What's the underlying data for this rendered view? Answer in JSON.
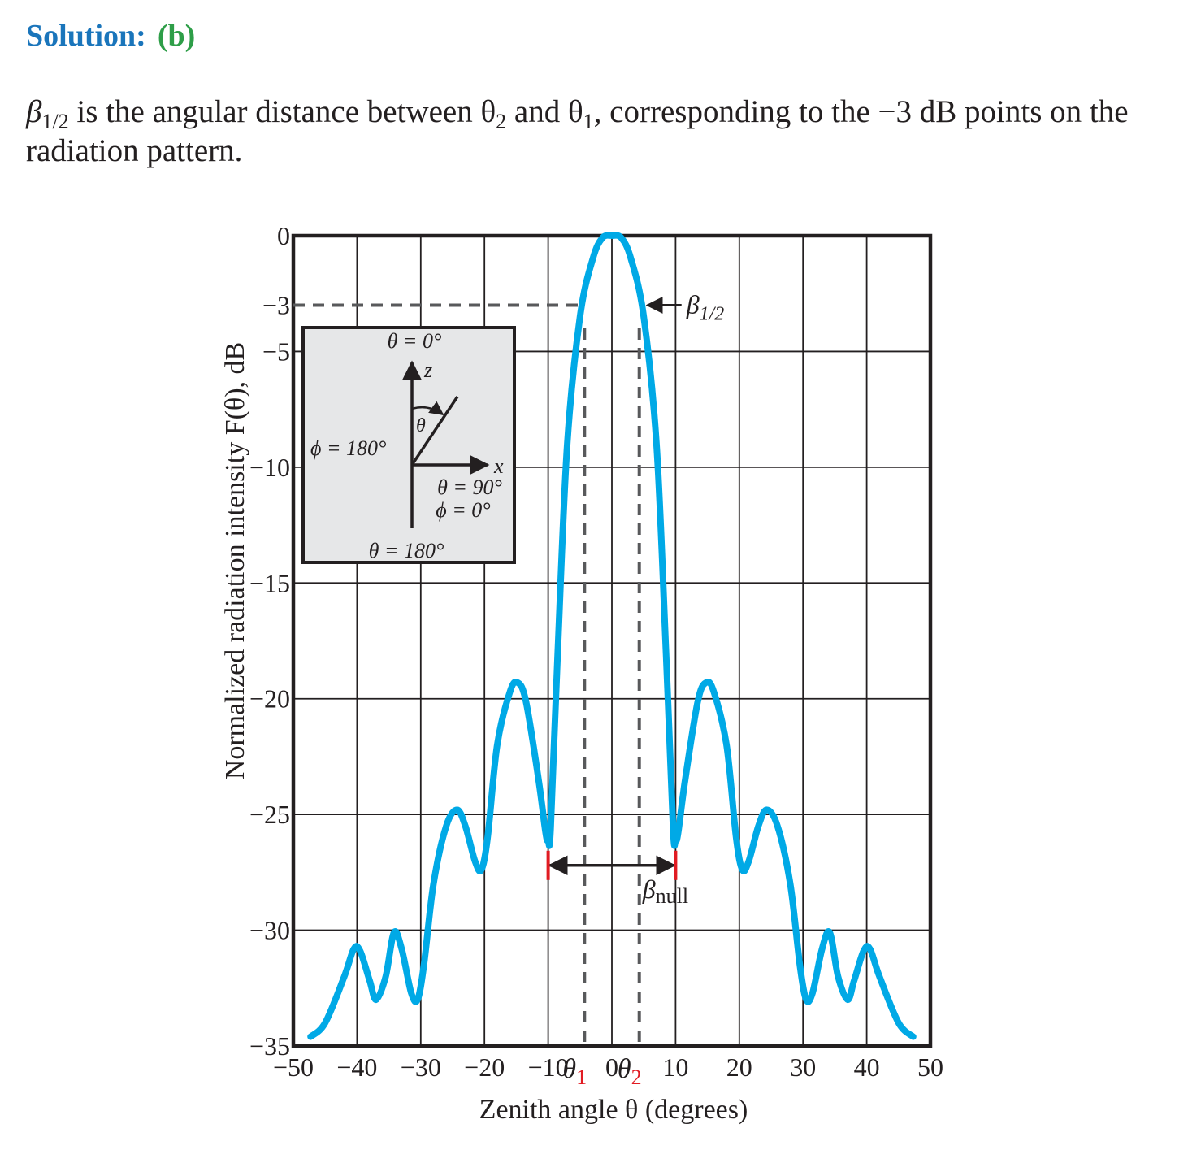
{
  "heading": {
    "label": "Solution:",
    "answer": "(b)"
  },
  "paragraph": {
    "symbol": "β",
    "symbol_sub": "1/2",
    "part1": " is the angular distance between ",
    "theta2": "θ",
    "theta2_sub": "2",
    "part2": " and ",
    "theta1": "θ",
    "theta1_sub": "1",
    "part3": ", corresponding to the −3 dB points on the radiation pattern."
  },
  "chart_data": {
    "type": "line",
    "xlabel": "Zenith angle θ (degrees)",
    "ylabel": "Normalized radiation intensity F(θ), dB",
    "xlim": [
      -50,
      50
    ],
    "ylim": [
      -35,
      0
    ],
    "xticks": [
      -50,
      -40,
      -30,
      -20,
      -10,
      0,
      10,
      20,
      30,
      40,
      50
    ],
    "xtick_labels": [
      "−50",
      "−40",
      "−30",
      "−20",
      "−10",
      "0",
      "10",
      "20",
      "30",
      "40",
      "50"
    ],
    "yticks": [
      0,
      -3,
      -5,
      -10,
      -15,
      -20,
      -25,
      -30,
      -35
    ],
    "ytick_labels": [
      "0",
      "−3",
      "−5",
      "−10",
      "−15",
      "−20",
      "−25",
      "−30",
      "−35"
    ],
    "grid": true,
    "line_color": "#00a9e6",
    "accent_color": "#e11b22",
    "series": [
      {
        "x": [
          -47.3,
          -45,
          -42,
          -40.5,
          -39.5,
          -38,
          -37,
          -35.5,
          -34.2,
          -33,
          -31.5,
          -30.5,
          -29.5,
          -28,
          -26,
          -24.3,
          -23,
          -21.5,
          -20.5,
          -19.5,
          -18,
          -16,
          -14.8,
          -13.5,
          -11.5,
          -10.4,
          -10,
          -9.6,
          -8.5,
          -7,
          -5,
          -3,
          -1.5,
          0,
          1.5,
          3,
          5,
          7,
          8.5,
          9.6,
          10,
          10.4,
          11.5,
          13.5,
          14.8,
          16,
          18,
          19.5,
          20.5,
          21.5,
          23,
          24.3,
          26,
          28,
          29.5,
          30.5,
          31.5,
          33,
          34.2,
          35.5,
          37,
          38,
          39.5,
          40.5,
          42,
          45,
          47.3
        ],
        "y": [
          -34.6,
          -34,
          -32,
          -30.8,
          -30.9,
          -32.2,
          -33,
          -32,
          -30.1,
          -30.8,
          -32.7,
          -33,
          -31.5,
          -28,
          -25.5,
          -24.8,
          -25.5,
          -27,
          -27.4,
          -26,
          -22,
          -19.7,
          -19.3,
          -20.1,
          -23.5,
          -25.8,
          -26.1,
          -25.6,
          -18,
          -9,
          -3.5,
          -1,
          -0.1,
          0,
          -0.1,
          -1,
          -3.5,
          -9,
          -18,
          -25.6,
          -26.1,
          -25.8,
          -23.5,
          -20.1,
          -19.3,
          -19.7,
          -22,
          -26,
          -27.4,
          -27,
          -25.5,
          -24.8,
          -25.5,
          -28,
          -31.5,
          -33,
          -32.7,
          -30.8,
          -30.1,
          -32,
          -33,
          -32.2,
          -30.9,
          -30.8,
          -32,
          -34,
          -34.6
        ]
      }
    ],
    "annotations": {
      "half_power_level": -3,
      "theta1": -4.3,
      "theta2": 4.3,
      "theta1_label": "θ",
      "theta1_sub": "1",
      "theta2_label": "θ",
      "theta2_sub": "2",
      "beta_half": "β",
      "beta_half_sub": "1/2",
      "null_left": -10,
      "null_right": 10,
      "null_marker_level": -27.2,
      "beta_null": "β",
      "beta_null_sub": "null"
    },
    "inset": {
      "theta0": "θ = 0°",
      "z_axis": "z",
      "theta": "θ",
      "phi180": "ϕ = 180°",
      "x_axis": "x",
      "theta90": "θ = 90°",
      "phi0": "ϕ = 0°",
      "theta180": "θ = 180°"
    }
  }
}
